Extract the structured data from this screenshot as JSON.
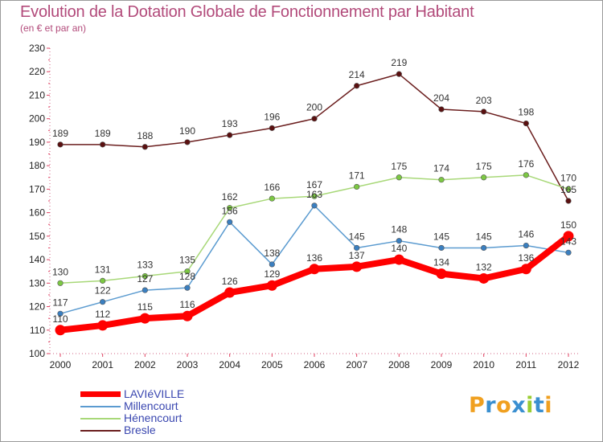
{
  "header": {
    "title": "Evolution de la Dotation Globale de Fonctionnement par Habitant",
    "subtitle": "(en € et par an)"
  },
  "logo": {
    "letters": [
      "P",
      "r",
      "o",
      "x",
      "i",
      "t",
      "i"
    ],
    "colors": [
      "#f0a020",
      "#3a8fd0",
      "#f0a020",
      "#3a8fd0",
      "#9acd32",
      "#3a8fd0",
      "#f0a020"
    ]
  },
  "chart_data": {
    "type": "line",
    "x": [
      "2000",
      "2001",
      "2002",
      "2003",
      "2004",
      "2005",
      "2006",
      "2007",
      "2008",
      "2009",
      "2010",
      "2011",
      "2012"
    ],
    "ylim": [
      100,
      230
    ],
    "yticks": [
      100,
      110,
      120,
      130,
      140,
      150,
      160,
      170,
      180,
      190,
      200,
      210,
      220,
      230
    ],
    "grid": false,
    "legend_position": "bottom-left",
    "series": [
      {
        "name": "Bresle",
        "color": "#6b1e1e",
        "marker": "#5a1010",
        "values": [
          189,
          189,
          188,
          190,
          193,
          196,
          200,
          214,
          219,
          204,
          203,
          198,
          165
        ]
      },
      {
        "name": "Hénencourt",
        "color": "#a8d878",
        "marker": "#7cc843",
        "values": [
          130,
          131,
          133,
          135,
          162,
          166,
          167,
          171,
          175,
          174,
          175,
          176,
          170
        ]
      },
      {
        "name": "Millencourt",
        "color": "#5b9bd0",
        "marker": "#3a7fc0",
        "values": [
          117,
          122,
          127,
          128,
          156,
          138,
          163,
          145,
          148,
          145,
          145,
          146,
          143
        ]
      },
      {
        "name": "LAVIéVILLE",
        "color": "#ff0000",
        "marker": "#ff0000",
        "values": [
          110,
          112,
          115,
          116,
          126,
          129,
          136,
          137,
          140,
          134,
          132,
          136,
          150
        ]
      }
    ]
  },
  "legend": [
    {
      "label": "LAVIéVILLE",
      "color": "#ff0000",
      "thickness": 7
    },
    {
      "label": "Millencourt",
      "color": "#5b9bd0",
      "thickness": 2
    },
    {
      "label": "Hénencourt",
      "color": "#a8d878",
      "thickness": 2
    },
    {
      "label": "Bresle",
      "color": "#6b1e1e",
      "thickness": 2
    }
  ]
}
